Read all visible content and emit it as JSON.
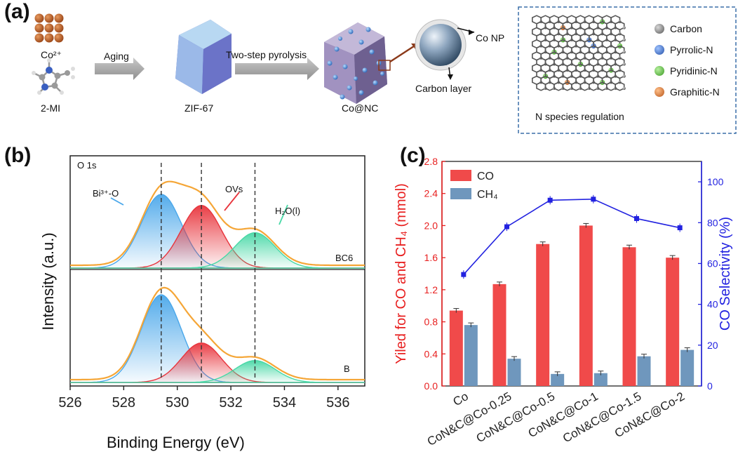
{
  "panel_a": {
    "label": "(a)",
    "co_ion": "Co²⁺",
    "ligand": "2-MI",
    "step1": "Aging",
    "step2": "Two-step pyrolysis",
    "zif": "ZIF-67",
    "product": "Co@NC",
    "np": "Co NP",
    "shell": "Carbon layer",
    "inset_caption": "N species regulation",
    "legend": [
      {
        "label": "Carbon",
        "color": "#7a7a7a"
      },
      {
        "label": "Pyrrolic-N",
        "color": "#3a6fc4"
      },
      {
        "label": "Pyridinic-N",
        "color": "#5cbf3a"
      },
      {
        "label": "Graphitic-N",
        "color": "#d9772e"
      }
    ]
  },
  "panel_b": {
    "label": "(b)",
    "corner": "O 1s",
    "ylabel": "Intensity (a.u.)",
    "xlabel": "Binding Energy (eV)",
    "bi_label": "Bi³⁺-O",
    "ov_label": "OVs",
    "h2o_label": "H₂O(l)",
    "sample_top": "BC6",
    "sample_bottom": "B",
    "xticks": [
      "526",
      "528",
      "530",
      "532",
      "534",
      "536"
    ]
  },
  "panel_c": {
    "label": "(c)"
  },
  "chart_data": [
    {
      "type": "line",
      "title": "O 1s",
      "xlabel": "Binding Energy (eV)",
      "ylabel": "Intensity (a.u.)",
      "xlim": [
        526,
        537
      ],
      "series": [
        {
          "name": "BC6",
          "components": [
            {
              "name": "Bi³⁺-O",
              "center": 529.4,
              "height": 1.0,
              "color": "#4aa7ea"
            },
            {
              "name": "OVs",
              "center": 530.9,
              "height": 0.85,
              "color": "#e8343c"
            },
            {
              "name": "H₂O(l)",
              "center": 532.9,
              "height": 0.48,
              "color": "#48d8a6"
            }
          ]
        },
        {
          "name": "B",
          "components": [
            {
              "name": "Bi³⁺-O",
              "center": 529.4,
              "height": 1.0,
              "color": "#4aa7ea"
            },
            {
              "name": "OVs",
              "center": 530.9,
              "height": 0.45,
              "color": "#e8343c"
            },
            {
              "name": "H₂O(l)",
              "center": 532.9,
              "height": 0.25,
              "color": "#48d8a6"
            }
          ]
        }
      ],
      "reference_lines": [
        529.4,
        530.9,
        532.9
      ]
    },
    {
      "type": "bar",
      "categories": [
        "Co",
        "CoN&C@Co-0.25",
        "CoN&C@Co-0.5",
        "CoN&C@Co-1",
        "CoN&C@Co-1.5",
        "CoN&C@Co-2"
      ],
      "series": [
        {
          "name": "CO",
          "axis": "left",
          "values": [
            0.94,
            1.27,
            1.77,
            2.0,
            1.73,
            1.6
          ],
          "color": "#f04a4a"
        },
        {
          "name": "CH₄",
          "axis": "left",
          "values": [
            0.76,
            0.34,
            0.15,
            0.16,
            0.37,
            0.45
          ],
          "color": "#6f97bd"
        },
        {
          "name": "CO Selectivity",
          "type": "line",
          "axis": "right",
          "values": [
            54.6,
            78.0,
            91.0,
            91.5,
            82.0,
            77.5
          ],
          "color": "#2222e0"
        }
      ],
      "ylabel": "Yiled for CO and CH₄ (mmol)",
      "y2label": "CO Selectivity (%)",
      "ylim": [
        0,
        2.8
      ],
      "y2lim": [
        0,
        110
      ],
      "yticks": [
        "0.0",
        "0.4",
        "0.8",
        "1.2",
        "1.6",
        "2.0",
        "2.4",
        "2.8"
      ],
      "y2ticks": [
        "0",
        "20",
        "40",
        "60",
        "80",
        "100"
      ],
      "legend": "top-left"
    }
  ]
}
